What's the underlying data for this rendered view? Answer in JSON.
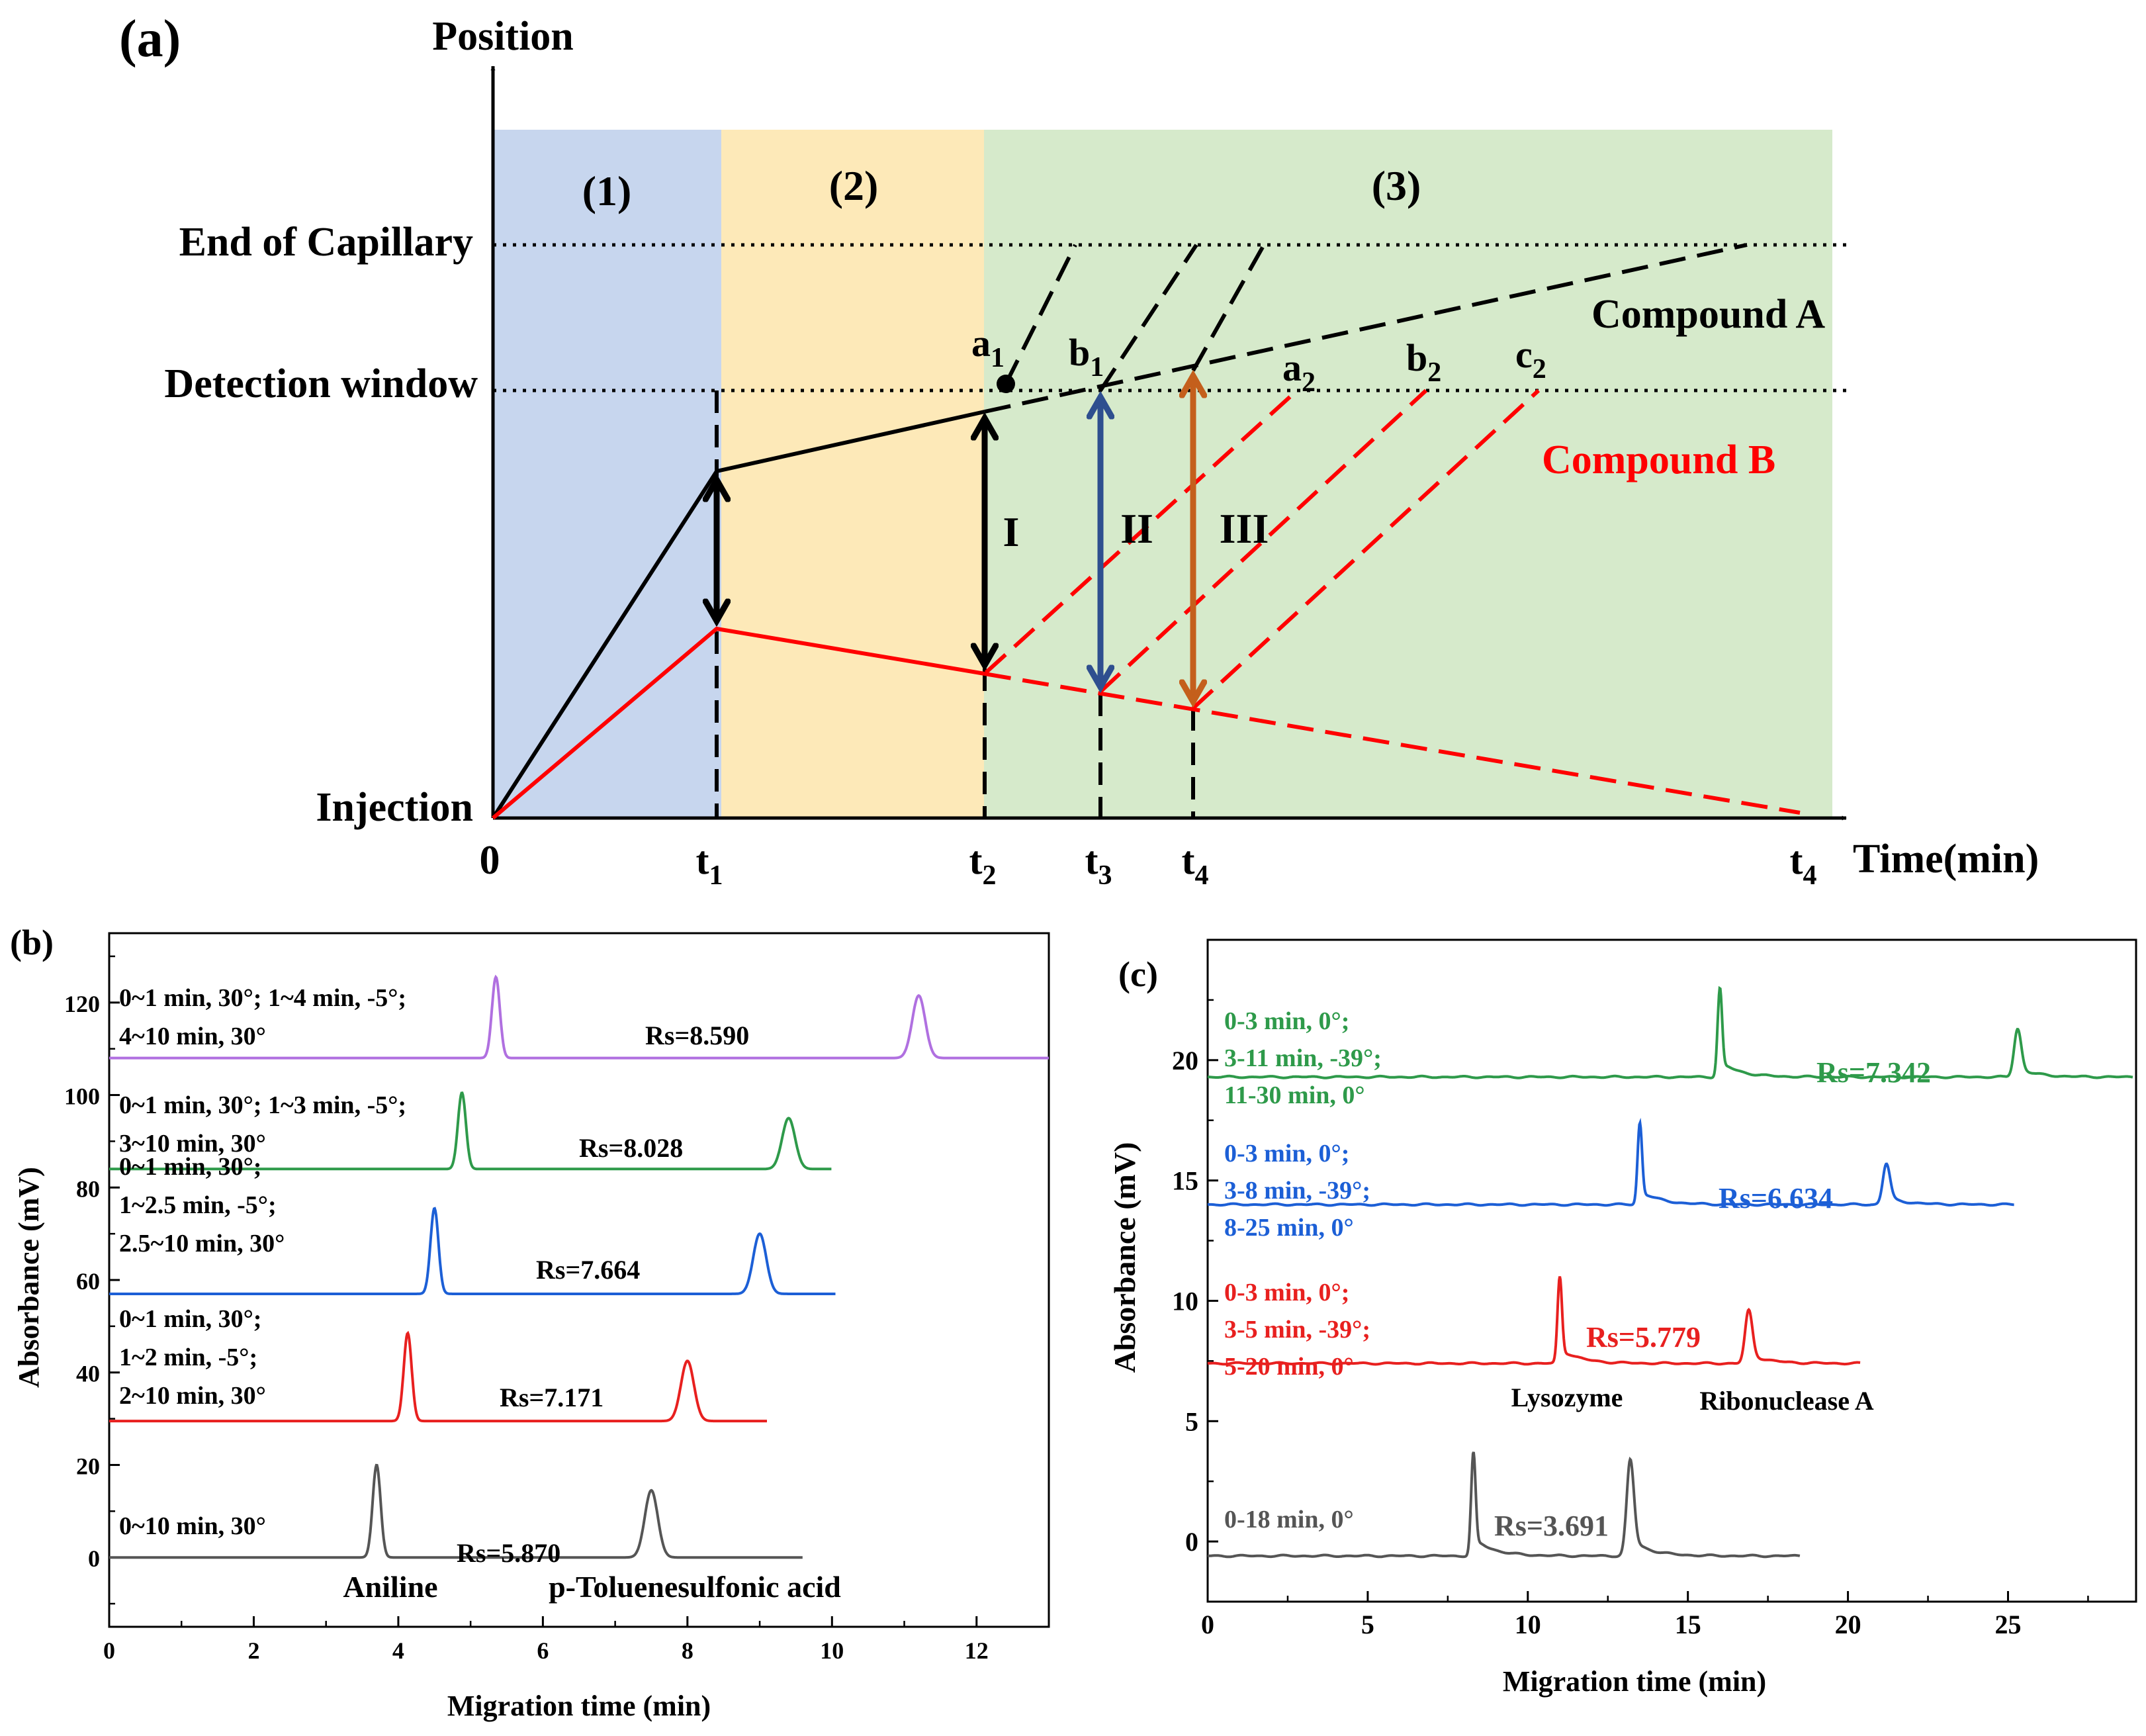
{
  "chart_data": [
    {
      "panel_label": "(a)",
      "type": "diagram",
      "y_axis_label": "Position",
      "x_axis_label": "Time(min)",
      "origin_label": "0",
      "regions": [
        "(1)",
        "(2)",
        "(3)"
      ],
      "region_colors": [
        "#c7d6ee",
        "#fde9b8",
        "#d6eacb"
      ],
      "position_labels": {
        "end": "End of Capillary",
        "window": "Detection window",
        "injection": "Injection"
      },
      "time_ticks": [
        {
          "base": "t",
          "sub": "1"
        },
        {
          "base": "t",
          "sub": "2"
        },
        {
          "base": "t",
          "sub": "3"
        },
        {
          "base": "t",
          "sub": "4"
        },
        {
          "base": "t",
          "sub": "4"
        }
      ],
      "compound_labels": {
        "a": "Compound A",
        "b": "Compound B"
      },
      "compound_colors": {
        "a": "#000000",
        "b": "#ff0000"
      },
      "arrow_labels": [
        "I",
        "II",
        "III"
      ],
      "arrow_colors": [
        "#000000",
        "#2e4f8f",
        "#c45f1c"
      ],
      "points": [
        {
          "base": "a",
          "sub": "1"
        },
        {
          "base": "b",
          "sub": "1"
        },
        {
          "base": "a",
          "sub": "2"
        },
        {
          "base": "b",
          "sub": "2"
        },
        {
          "base": "c",
          "sub": "2"
        }
      ]
    },
    {
      "panel_label": "(b)",
      "type": "line",
      "xlabel": "Migration time (min)",
      "ylabel": "Absorbance (mV)",
      "xlim": [
        0,
        13
      ],
      "ylim": [
        -15,
        135
      ],
      "xticks": [
        0,
        2,
        4,
        6,
        8,
        10,
        12
      ],
      "yticks": [
        0,
        20,
        40,
        60,
        80,
        100,
        120
      ],
      "peak_labels": [
        "Aniline",
        "p-Toluenesulfonic acid"
      ],
      "series": [
        {
          "color": "#555555",
          "baseline": 0,
          "x_end": 9.6,
          "peaks": [
            {
              "x": 3.7,
              "h": 20
            },
            {
              "x": 7.5,
              "h": 14.5
            }
          ],
          "condition": [
            "0~10 min, 30°"
          ],
          "rs": "Rs=5.870"
        },
        {
          "color": "#e8201f",
          "baseline": 29.5,
          "x_end": 9.1,
          "peaks": [
            {
              "x": 4.13,
              "h": 19
            },
            {
              "x": 8.0,
              "h": 13
            }
          ],
          "condition": [
            "0~1 min, 30°;",
            "1~2 min, -5°;",
            "2~10 min, 30°"
          ],
          "rs": "Rs=7.171"
        },
        {
          "color": "#1c5fd6",
          "baseline": 57,
          "x_end": 10.05,
          "peaks": [
            {
              "x": 4.5,
              "h": 18.5
            },
            {
              "x": 9.0,
              "h": 13
            }
          ],
          "condition": [
            "0~1 min, 30°;",
            "1~2.5 min, -5°;",
            "2.5~10 min, 30°"
          ],
          "rs": "Rs=7.664"
        },
        {
          "color": "#2e9a4a",
          "baseline": 84,
          "x_end": 10.0,
          "peaks": [
            {
              "x": 4.88,
              "h": 16.5
            },
            {
              "x": 9.4,
              "h": 11
            }
          ],
          "condition": [
            "0~1 min, 30°; 1~3 min, -5°;",
            "3~10 min, 30°"
          ],
          "rs": "Rs=8.028"
        },
        {
          "color": "#b070e0",
          "baseline": 108,
          "x_end": 13.0,
          "peaks": [
            {
              "x": 5.35,
              "h": 17.5
            },
            {
              "x": 11.2,
              "h": 13.5
            }
          ],
          "condition": [
            "0~1 min, 30°; 1~4 min, -5°;",
            "4~10 min, 30°"
          ],
          "rs": "Rs=8.590"
        }
      ]
    },
    {
      "panel_label": "(c)",
      "type": "line",
      "xlabel": "Migration time (min)",
      "ylabel": "Absorbance (mV)",
      "xlim": [
        0,
        29
      ],
      "ylim": [
        -2.5,
        25
      ],
      "xticks": [
        0,
        5,
        10,
        15,
        20,
        25
      ],
      "yticks": [
        0,
        5,
        10,
        15,
        20
      ],
      "peak_labels": [
        "Lysozyme",
        "Ribonuclease A"
      ],
      "series": [
        {
          "color": "#555555",
          "baseline": -0.6,
          "x_end": 18.5,
          "peaks": [
            {
              "x": 8.3,
              "h": 4.3
            },
            {
              "x": 13.2,
              "h": 4.0
            }
          ],
          "condition": [
            "0-18 min, 0°"
          ],
          "rs": "Rs=3.691"
        },
        {
          "color": "#e8201f",
          "baseline": 7.4,
          "x_end": 20.4,
          "peaks": [
            {
              "x": 11.0,
              "h": 3.6
            },
            {
              "x": 16.9,
              "h": 2.2
            }
          ],
          "condition": [
            "0-3 min, 0°;",
            "3-5 min, -39°;",
            "5-20 min, 0°"
          ],
          "rs": "Rs=5.779"
        },
        {
          "color": "#1c5fd6",
          "baseline": 14.0,
          "x_end": 25.2,
          "peaks": [
            {
              "x": 13.5,
              "h": 3.4
            },
            {
              "x": 21.2,
              "h": 1.7
            }
          ],
          "condition": [
            "0-3 min, 0°;",
            "3-8 min, -39°;",
            "8-25 min, 0°"
          ],
          "rs": "Rs=6.634"
        },
        {
          "color": "#2e9a4a",
          "baseline": 19.3,
          "x_end": 28.9,
          "peaks": [
            {
              "x": 16.0,
              "h": 3.7
            },
            {
              "x": 25.3,
              "h": 2.0
            }
          ],
          "condition": [
            "0-3 min, 0°;",
            "3-11 min, -39°;",
            "11-30 min, 0°"
          ],
          "rs": "Rs=7.342"
        }
      ]
    }
  ]
}
